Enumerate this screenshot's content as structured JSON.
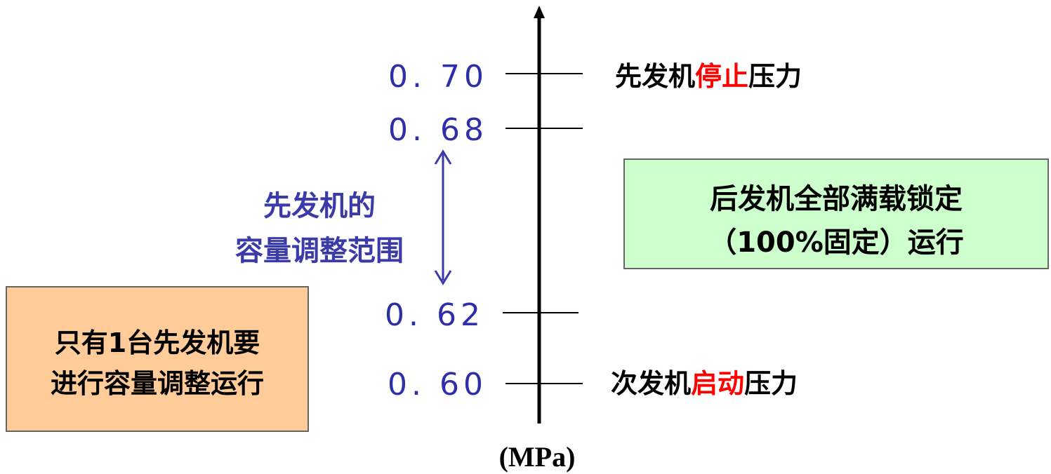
{
  "axis": {
    "unit": "(MPa)",
    "ticks": [
      "0. 70",
      "0. 68",
      "0. 62",
      "0. 60"
    ]
  },
  "labels": {
    "stop": {
      "prefix": "先发机",
      "highlight": "停止",
      "suffix": "压力"
    },
    "start": {
      "prefix": "次发机",
      "highlight": "启动",
      "suffix": "压力"
    }
  },
  "range": {
    "line1": "先发机的",
    "line2": "容量调整范围"
  },
  "green_box": {
    "line1": "后发机全部满载锁定",
    "line2": "（100%固定）运行"
  },
  "orange_box": {
    "line1": "只有1台先发机要",
    "line2": "进行容量调整运行"
  },
  "colors": {
    "tick_text": "#2e2ea8",
    "highlight": "#ff0000",
    "green_box": "#ccffcc",
    "orange_box": "#ffcc99",
    "arrow": "#3a3aa8"
  }
}
